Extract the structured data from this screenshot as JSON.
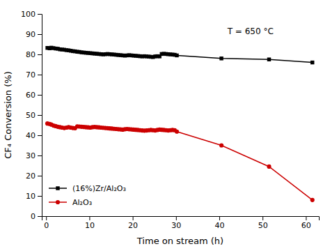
{
  "chart_data": {
    "type": "line",
    "x_label": "Time on stream (h)",
    "y_label": "CF₄ Conversion (%)",
    "annotation": "T = 650 °C",
    "xlim": [
      -1,
      63
    ],
    "ylim": [
      0,
      100
    ],
    "xticks": [
      0,
      10,
      20,
      30,
      40,
      50,
      60
    ],
    "yticks": [
      0,
      10,
      20,
      30,
      40,
      50,
      60,
      70,
      80,
      90,
      100
    ],
    "grid": false,
    "legend": "lower left",
    "x": [
      0.3,
      0.8,
      1.2,
      1.7,
      2.2,
      2.7,
      3.2,
      3.7,
      4.2,
      4.7,
      5.2,
      5.7,
      6.2,
      6.7,
      7.2,
      7.7,
      8.2,
      8.7,
      9.2,
      9.7,
      10.2,
      10.7,
      11.2,
      11.7,
      12.2,
      12.7,
      13.2,
      13.7,
      14.2,
      14.7,
      15.2,
      15.7,
      16.2,
      16.7,
      17.2,
      17.7,
      18.2,
      18.7,
      19.2,
      19.7,
      20.2,
      20.7,
      21.2,
      21.7,
      22.2,
      22.7,
      23.2,
      23.7,
      24.2,
      24.7,
      25.2,
      25.7,
      26.2,
      26.7,
      27.2,
      27.7,
      28.2,
      28.7,
      29.2,
      29.7,
      30.2,
      40.5,
      51.5,
      61.5
    ],
    "series": [
      {
        "name": "(16%)Zr/Al₂O₃",
        "color": "#000000",
        "marker": "square",
        "line_style": "solid",
        "values": [
          83.2,
          83.0,
          83.3,
          83.1,
          82.9,
          82.8,
          82.5,
          82.4,
          82.3,
          82.1,
          82.0,
          81.8,
          81.6,
          81.5,
          81.3,
          81.2,
          81.0,
          80.9,
          80.8,
          80.7,
          80.6,
          80.5,
          80.4,
          80.3,
          80.2,
          80.1,
          80.0,
          80.1,
          80.2,
          80.1,
          80.0,
          79.9,
          79.8,
          79.7,
          79.6,
          79.5,
          79.4,
          79.5,
          79.6,
          79.5,
          79.4,
          79.3,
          79.2,
          79.1,
          79.0,
          79.1,
          79.0,
          78.9,
          78.8,
          78.7,
          79.0,
          79.1,
          79.0,
          80.2,
          80.3,
          80.2,
          80.1,
          80.0,
          79.9,
          79.8,
          79.5,
          78.0,
          77.5,
          76.0
        ]
      },
      {
        "name": "Al₂O₃",
        "color": "#cc0000",
        "marker": "circle",
        "line_style": "solid",
        "values": [
          45.8,
          45.6,
          45.3,
          44.8,
          44.5,
          44.2,
          44.0,
          43.8,
          43.6,
          43.8,
          44.0,
          43.8,
          43.6,
          43.5,
          44.4,
          44.3,
          44.2,
          44.1,
          44.0,
          43.9,
          43.8,
          44.0,
          44.1,
          44.0,
          43.9,
          43.8,
          43.7,
          43.6,
          43.5,
          43.4,
          43.3,
          43.2,
          43.1,
          43.0,
          42.9,
          42.8,
          43.0,
          43.1,
          43.0,
          42.9,
          42.8,
          42.7,
          42.6,
          42.5,
          42.4,
          42.3,
          42.4,
          42.5,
          42.6,
          42.5,
          42.4,
          42.6,
          42.8,
          42.7,
          42.6,
          42.5,
          42.4,
          42.5,
          42.6,
          42.5,
          41.8,
          35.0,
          24.5,
          8.0
        ]
      }
    ]
  }
}
